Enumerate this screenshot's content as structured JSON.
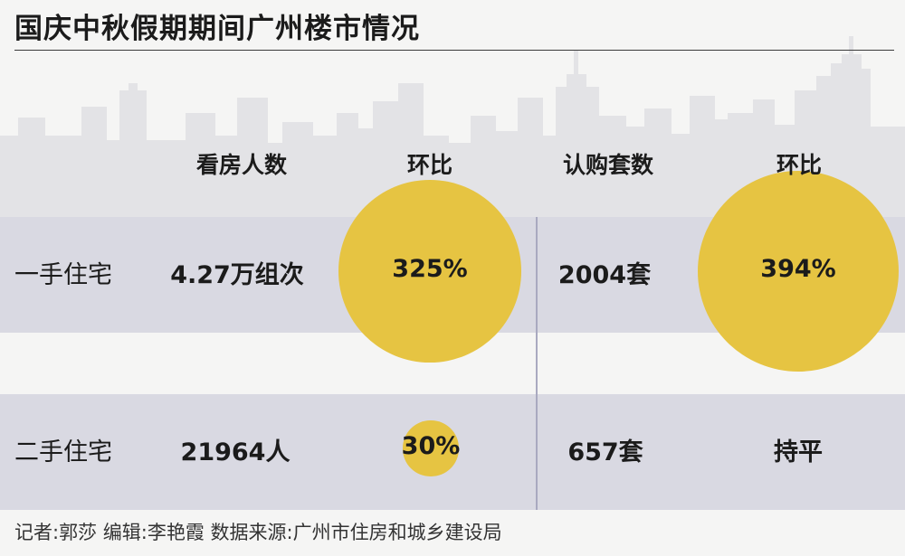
{
  "title": "国庆中秋假期期间广州楼市情况",
  "chart_data": {
    "type": "table",
    "title": "国庆中秋假期期间广州楼市情况",
    "columns": [
      "看房人数",
      "环比",
      "认购套数",
      "环比"
    ],
    "rows": [
      {
        "label": "一手住宅",
        "viewings": "4.27万组次",
        "viewings_mom": "325%",
        "subscriptions": "2004套",
        "subscriptions_mom": "394%"
      },
      {
        "label": "二手住宅",
        "viewings": "21964人",
        "viewings_mom": "30%",
        "subscriptions": "657套",
        "subscriptions_mom": "持平"
      }
    ],
    "mom_circles": [
      {
        "row": "一手住宅",
        "column": "看房人数环比",
        "value_percent": 325
      },
      {
        "row": "一手住宅",
        "column": "认购套数环比",
        "value_percent": 394
      },
      {
        "row": "二手住宅",
        "column": "看房人数环比",
        "value_percent": 30
      }
    ]
  },
  "footer": "记者:郭莎   编辑:李艳霞   数据来源:广州市住房和城乡建设局",
  "colors": {
    "background": "#f5f5f4",
    "row_band": "#d9d9e2",
    "circle": "#e6c442",
    "skyline": "#e3e3e6",
    "divider": "#a9a9c0",
    "text": "#1b1b1b"
  }
}
